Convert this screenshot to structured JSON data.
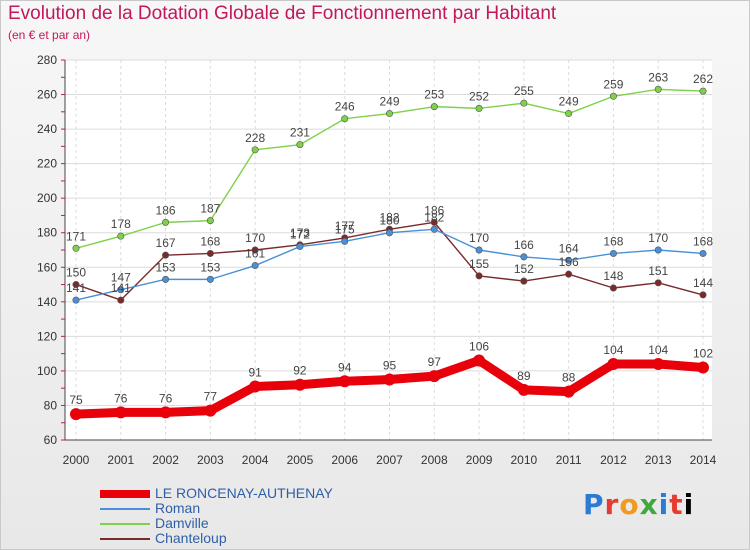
{
  "title": "Evolution de la Dotation Globale de Fonctionnement par Habitant",
  "subtitle": "(en € et par an)",
  "logo_text": "Proxiti",
  "chart_data": {
    "type": "line",
    "x": [
      "2000",
      "2001",
      "2002",
      "2003",
      "2004",
      "2005",
      "2006",
      "2007",
      "2008",
      "2009",
      "2010",
      "2011",
      "2012",
      "2013",
      "2014"
    ],
    "ylim": [
      60,
      280
    ],
    "yticks": [
      60,
      80,
      100,
      120,
      140,
      160,
      180,
      200,
      220,
      240,
      260,
      280
    ],
    "grid": true,
    "legend_position": "bottom-left",
    "series": [
      {
        "name": "LE RONCENAY-AUTHENAY",
        "color": "#e8000b",
        "values": [
          75,
          76,
          76,
          77,
          91,
          92,
          94,
          95,
          97,
          106,
          89,
          88,
          104,
          104,
          102
        ]
      },
      {
        "name": "Roman",
        "color": "#4a90d9",
        "values": [
          141,
          147,
          153,
          153,
          161,
          172,
          175,
          180,
          182,
          170,
          166,
          164,
          168,
          170,
          168
        ]
      },
      {
        "name": "Damville",
        "color": "#7fd14a",
        "values": [
          171,
          178,
          186,
          187,
          228,
          231,
          246,
          249,
          253,
          252,
          255,
          249,
          259,
          263,
          262
        ]
      },
      {
        "name": "Chanteloup",
        "color": "#7a2a2a",
        "values": [
          150,
          141,
          167,
          168,
          170,
          173,
          177,
          182,
          186,
          155,
          152,
          156,
          148,
          151,
          144
        ]
      }
    ]
  }
}
